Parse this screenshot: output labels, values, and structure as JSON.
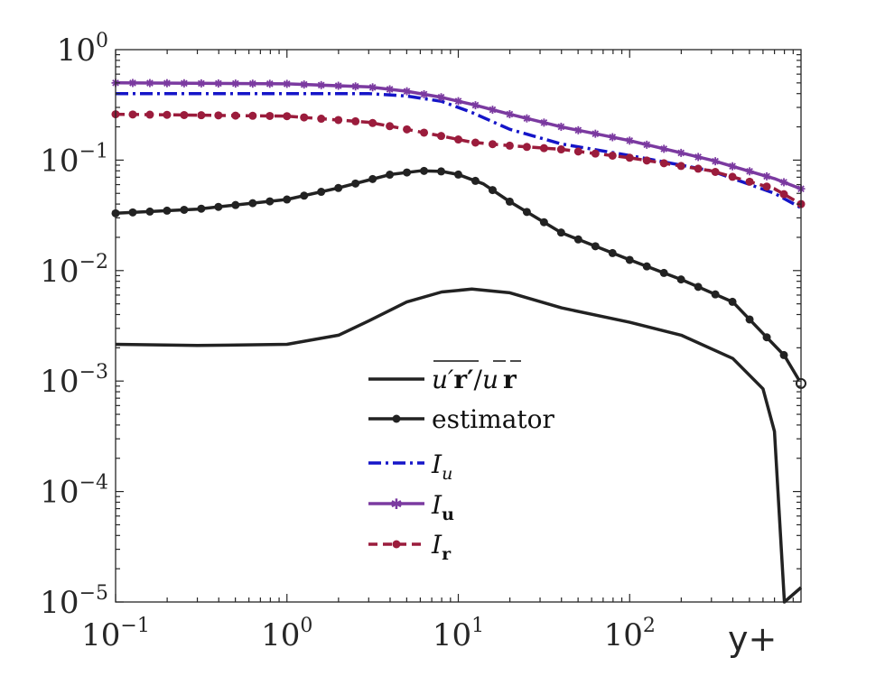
{
  "chart_data": {
    "type": "line",
    "x_scale": "log",
    "y_scale": "log",
    "xlim": [
      0.1,
      1000
    ],
    "ylim": [
      1e-05,
      1
    ],
    "xlabel": "y+",
    "x_ticks": [
      {
        "value": 0.1,
        "base": "10",
        "exp": "−1"
      },
      {
        "value": 1,
        "base": "10",
        "exp": "0"
      },
      {
        "value": 10,
        "base": "10",
        "exp": "1"
      },
      {
        "value": 100,
        "base": "10",
        "exp": "2"
      }
    ],
    "y_ticks": [
      {
        "value": 1,
        "base": "10",
        "exp": "0"
      },
      {
        "value": 0.1,
        "base": "10",
        "exp": "−1"
      },
      {
        "value": 0.01,
        "base": "10",
        "exp": "−2"
      },
      {
        "value": 0.001,
        "base": "10",
        "exp": "−3"
      },
      {
        "value": 0.0001,
        "base": "10",
        "exp": "−4"
      },
      {
        "value": 1e-05,
        "base": "10",
        "exp": "−5"
      }
    ],
    "series": [
      {
        "name": "correlation",
        "legend": {
          "main": "u′r′ / u r",
          "sub": ""
        },
        "color": "#222222",
        "style": "solid",
        "marker": "none",
        "x": [
          0.1,
          0.3,
          1,
          2,
          3,
          5,
          8,
          12,
          20,
          40,
          100,
          200,
          400,
          600,
          700,
          800,
          1000
        ],
        "y": [
          0.00215,
          0.0021,
          0.00215,
          0.0026,
          0.0035,
          0.0052,
          0.0064,
          0.0068,
          0.0063,
          0.0046,
          0.0034,
          0.0026,
          0.0016,
          0.00085,
          0.00035,
          1e-05,
          1.35e-05
        ]
      },
      {
        "name": "estimator",
        "legend": {
          "main": "estimator",
          "sub": ""
        },
        "color": "#222222",
        "style": "solid",
        "marker": "dot",
        "x": [
          0.1,
          0.3,
          1,
          2,
          3,
          4,
          6,
          8,
          10,
          14,
          20,
          40,
          100,
          200,
          400,
          600,
          800,
          1000
        ],
        "y": [
          0.033,
          0.036,
          0.044,
          0.056,
          0.066,
          0.074,
          0.08,
          0.079,
          0.074,
          0.061,
          0.042,
          0.022,
          0.0125,
          0.0083,
          0.0052,
          0.0027,
          0.0017,
          0.00095
        ]
      },
      {
        "name": "I_u_scalar",
        "legend": {
          "main": "I",
          "sub": "u",
          "sub_bold": false
        },
        "color": "#1515c8",
        "style": "dashdot",
        "marker": "none",
        "x": [
          0.1,
          1,
          3,
          5,
          8,
          12,
          20,
          40,
          100,
          300,
          700,
          1000
        ],
        "y": [
          0.4,
          0.4,
          0.4,
          0.38,
          0.34,
          0.27,
          0.19,
          0.14,
          0.11,
          0.08,
          0.05,
          0.037
        ]
      },
      {
        "name": "I_u_vector",
        "legend": {
          "main": "I",
          "sub": "u",
          "sub_bold": true
        },
        "color": "#7b3aa0",
        "style": "solid",
        "marker": "star",
        "x": [
          0.1,
          1,
          3,
          5,
          8,
          12,
          20,
          40,
          100,
          300,
          700,
          1000
        ],
        "y": [
          0.5,
          0.49,
          0.46,
          0.42,
          0.37,
          0.32,
          0.26,
          0.2,
          0.15,
          0.1,
          0.068,
          0.055
        ]
      },
      {
        "name": "I_r",
        "legend": {
          "main": "I",
          "sub": "r",
          "sub_bold": true
        },
        "color": "#9b1c3c",
        "style": "dashed",
        "marker": "dot",
        "x": [
          0.1,
          1,
          3,
          5,
          8,
          12,
          20,
          40,
          100,
          300,
          700,
          1000
        ],
        "y": [
          0.26,
          0.25,
          0.22,
          0.19,
          0.165,
          0.145,
          0.135,
          0.125,
          0.105,
          0.08,
          0.055,
          0.04
        ]
      }
    ],
    "legend_position": "center"
  }
}
